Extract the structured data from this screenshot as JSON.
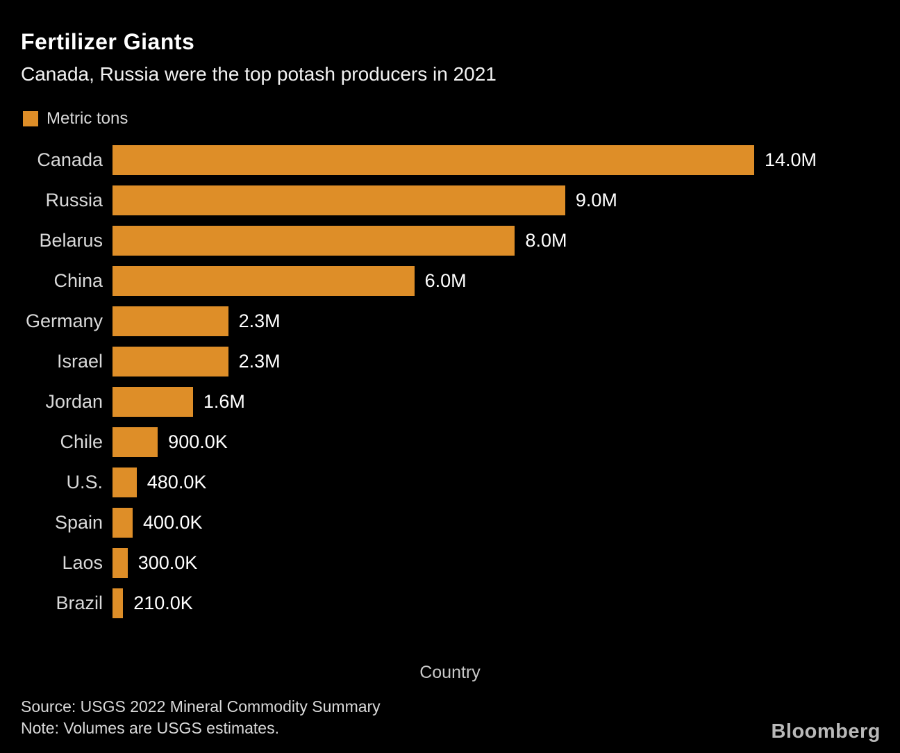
{
  "title": "Fertilizer Giants",
  "subtitle": "Canada, Russia were the top potash producers in 2021",
  "legend": {
    "label": "Metric tons",
    "swatch_color": "#de8e28"
  },
  "chart_data": {
    "type": "bar",
    "orientation": "horizontal",
    "title": "Fertilizer Giants",
    "subtitle": "Canada, Russia were the top potash producers in 2021",
    "unit": "Metric tons",
    "xlabel": "Country",
    "value_axis_range": [
      0,
      14000000
    ],
    "bar_color": "#de8e28",
    "grid": false,
    "legend_position": "top-left",
    "categories": [
      "Canada",
      "Russia",
      "Belarus",
      "China",
      "Germany",
      "Israel",
      "Jordan",
      "Chile",
      "U.S.",
      "Spain",
      "Laos",
      "Brazil"
    ],
    "values": [
      14000000,
      9000000,
      8000000,
      6000000,
      2300000,
      2300000,
      1600000,
      900000,
      480000,
      400000,
      300000,
      210000
    ],
    "value_labels": [
      "14.0M",
      "9.0M",
      "8.0M",
      "6.0M",
      "2.3M",
      "2.3M",
      "1.6M",
      "900.0K",
      "480.0K",
      "400.0K",
      "300.0K",
      "210.0K"
    ]
  },
  "footer": {
    "source": "Source: USGS 2022 Mineral Commodity Summary",
    "note": "Note: Volumes are USGS estimates.",
    "brand": "Bloomberg"
  }
}
